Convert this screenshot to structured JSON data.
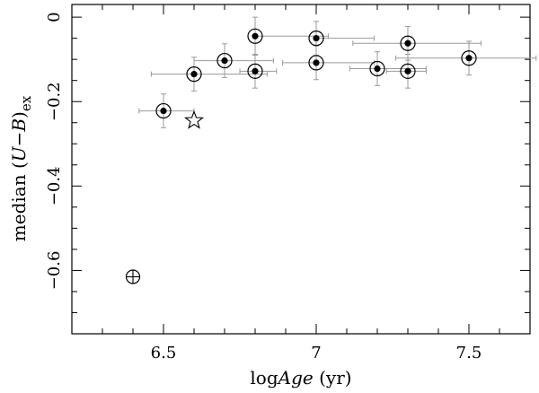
{
  "chart_data": {
    "type": "scatter",
    "xlabel": {
      "pre": "log",
      "italic": "Age",
      "post": " (yr)"
    },
    "ylabel": {
      "pre": "median (",
      "italic": "U−B",
      "post": ")",
      "sub": "ex"
    },
    "xlim": [
      6.2,
      7.7
    ],
    "ylim": [
      -0.75,
      0.03
    ],
    "x_major_ticks": [
      6.5,
      7,
      7.5
    ],
    "x_tick_labels": [
      "6.5",
      "7",
      "7.5"
    ],
    "x_minor_step": 0.1,
    "y_major_ticks": [
      0,
      -0.2,
      -0.4,
      -0.6
    ],
    "y_tick_labels": [
      "0",
      "−0.2",
      "−0.4",
      "−0.6"
    ],
    "y_minor_step": 0.05,
    "grid": false,
    "legend": "none",
    "series": [
      {
        "marker": "circled-dot",
        "points": [
          {
            "x": 6.5,
            "y": -0.222,
            "xerr": [
              0.08,
              0.1
            ],
            "yerr": 0.04
          },
          {
            "x": 6.6,
            "y": -0.135,
            "xerr": [
              0.14,
              0.24
            ],
            "yerr": 0.04
          },
          {
            "x": 6.7,
            "y": -0.103,
            "xerr": [
              0.1,
              0.16
            ],
            "yerr": 0.04
          },
          {
            "x": 6.8,
            "y": -0.128,
            "xerr": [
              0.05,
              0.07
            ],
            "yerr": 0.04
          },
          {
            "x": 6.8,
            "y": -0.045,
            "xerr": [
              0.0,
              0.24
            ],
            "yerr": 0.045
          },
          {
            "x": 7.0,
            "y": -0.108,
            "xerr": [
              0.11,
              0.19
            ],
            "yerr": 0.04
          },
          {
            "x": 7.0,
            "y": -0.05,
            "xerr": [
              0.0,
              0.19
            ],
            "yerr": 0.04
          },
          {
            "x": 7.2,
            "y": -0.122,
            "xerr": [
              0.09,
              0.16
            ],
            "yerr": 0.04
          },
          {
            "x": 7.3,
            "y": -0.128,
            "xerr": [
              0.07,
              0.06
            ],
            "yerr": 0.04
          },
          {
            "x": 7.3,
            "y": -0.062,
            "xerr": [
              0.18,
              0.24
            ],
            "yerr": 0.04
          },
          {
            "x": 7.5,
            "y": -0.097,
            "xerr": [
              0.24,
              0.22
            ],
            "yerr": 0.04
          }
        ]
      },
      {
        "marker": "star",
        "points": [
          {
            "x": 6.6,
            "y": -0.245
          }
        ]
      },
      {
        "marker": "earth",
        "points": [
          {
            "x": 6.4,
            "y": -0.615
          }
        ]
      }
    ]
  }
}
